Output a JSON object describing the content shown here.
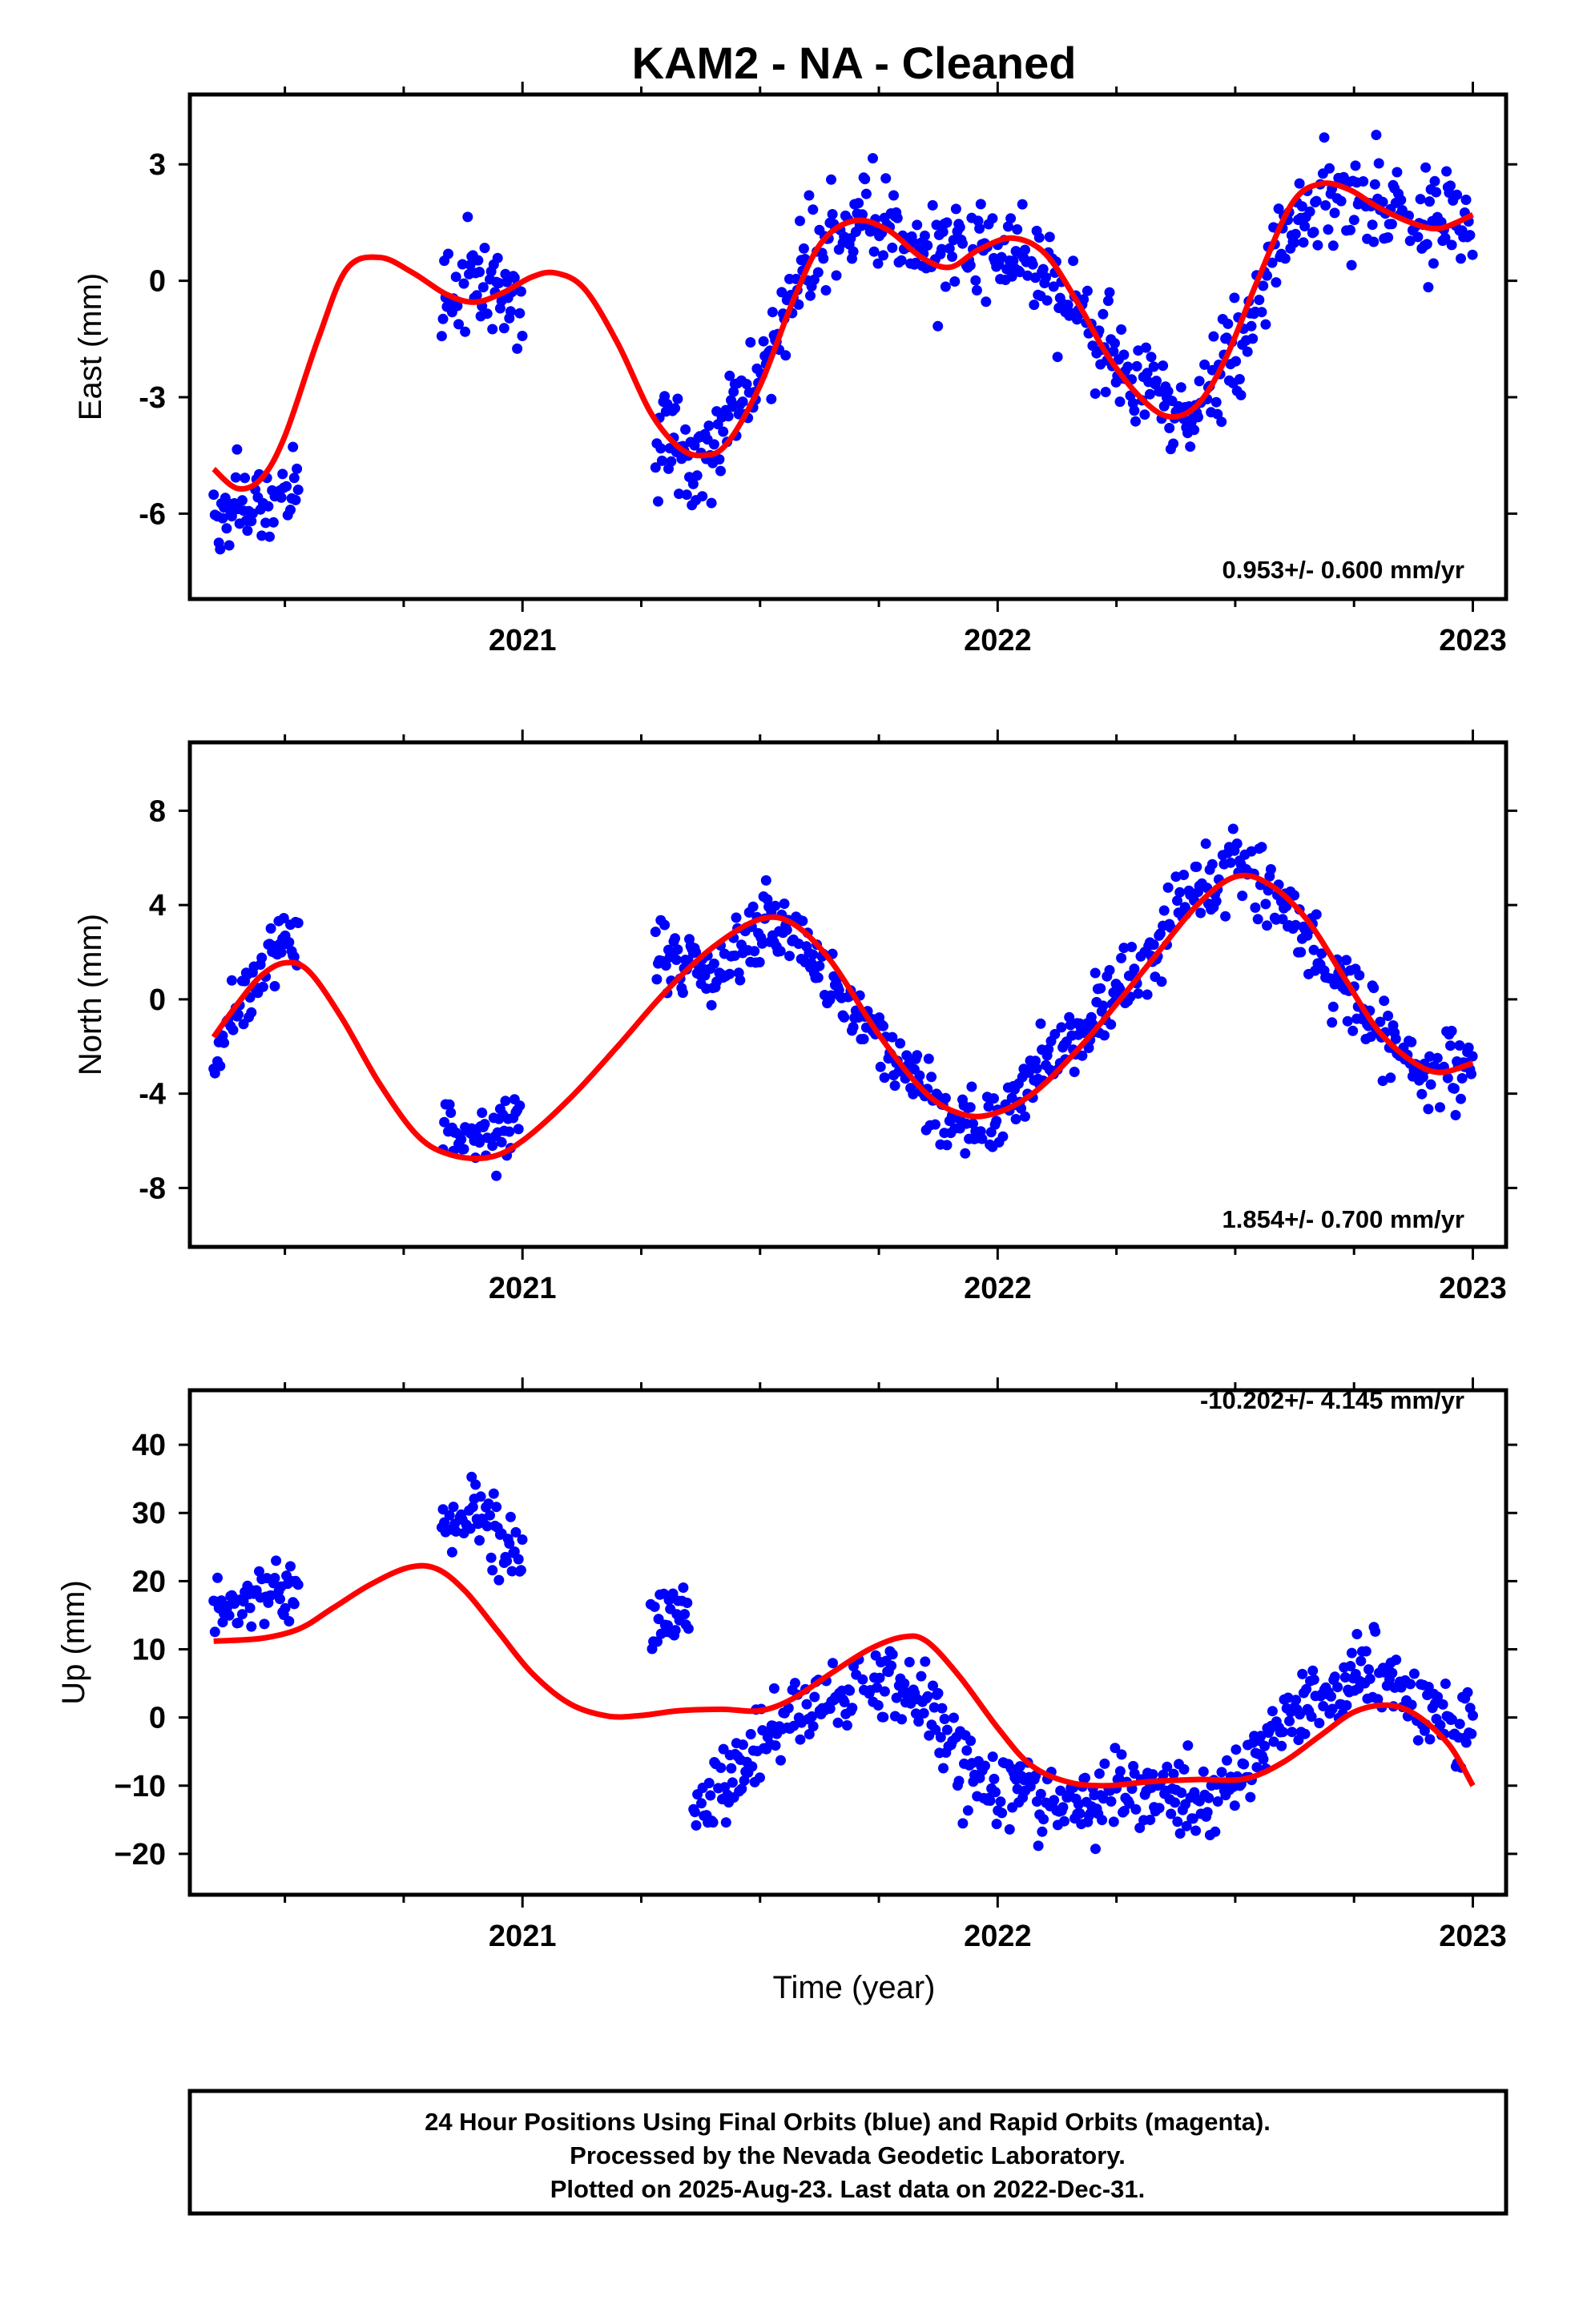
{
  "title": "KAM2  - NA - Cleaned",
  "footer_lines": [
    "24 Hour Positions Using Final Orbits (blue) and Rapid Orbits (magenta).",
    "Processed by the Nevada Geodetic Laboratory.",
    "Plotted on 2025-Aug-23. Last data on 2022-Dec-31."
  ],
  "colors": {
    "points": "#0000ff",
    "fit": "#ff0000",
    "frame": "#000000"
  },
  "chart_data": [
    {
      "type": "scatter",
      "ylabel": "East (mm)",
      "xlabel": "",
      "xlim": [
        2020.3,
        2023.07
      ],
      "ylim": [
        -8.2,
        4.8
      ],
      "x_ticks": [
        2021,
        2022,
        2023
      ],
      "x_tick_labels": [
        "2021",
        "2022",
        "2023"
      ],
      "y_ticks": [
        -6,
        -3,
        0,
        3
      ],
      "y_tick_labels": [
        "-6",
        "-3",
        "0",
        "3"
      ],
      "rate_text": "0.953+/- 0.600 mm/yr",
      "rate_position": "bottom-right",
      "series": [
        {
          "role": "daily_positions",
          "color": "#0000ff",
          "style": "points",
          "segments": [
            {
              "x_start": 2020.35,
              "x_end": 2020.53,
              "trend": [
                [
                  2020.35,
                  -6.0
                ],
                [
                  2020.42,
                  -5.9
                ],
                [
                  2020.5,
                  -5.4
                ],
                [
                  2020.53,
                  -5.2
                ]
              ],
              "scatter": 0.9
            },
            {
              "x_start": 2020.83,
              "x_end": 2021.0,
              "trend": [
                [
                  2020.83,
                  -0.7
                ],
                [
                  2020.9,
                  0.1
                ],
                [
                  2020.96,
                  -0.2
                ],
                [
                  2021.0,
                  -0.8
                ]
              ],
              "scatter": 1.1
            },
            {
              "x_start": 2021.28,
              "x_end": 2023.0,
              "trend": [
                [
                  2021.28,
                  -3.9
                ],
                [
                  2021.38,
                  -4.5
                ],
                [
                  2021.48,
                  -2.9
                ],
                [
                  2021.6,
                  0.8
                ],
                [
                  2021.72,
                  1.6
                ],
                [
                  2021.85,
                  0.8
                ],
                [
                  2022.0,
                  0.9
                ],
                [
                  2022.15,
                  -0.6
                ],
                [
                  2022.28,
                  -2.4
                ],
                [
                  2022.4,
                  -3.6
                ],
                [
                  2022.5,
                  -1.8
                ],
                [
                  2022.62,
                  1.8
                ],
                [
                  2022.75,
                  2.0
                ],
                [
                  2022.9,
                  1.5
                ],
                [
                  2023.0,
                  1.7
                ]
              ],
              "scatter": 1.0
            }
          ]
        },
        {
          "role": "model_fit",
          "color": "#ff0000",
          "style": "line",
          "points": [
            [
              2020.35,
              -4.85
            ],
            [
              2020.4,
              -5.35
            ],
            [
              2020.45,
              -5.1
            ],
            [
              2020.5,
              -4.0
            ],
            [
              2020.57,
              -1.5
            ],
            [
              2020.63,
              0.3
            ],
            [
              2020.7,
              0.6
            ],
            [
              2020.77,
              0.2
            ],
            [
              2020.84,
              -0.35
            ],
            [
              2020.9,
              -0.55
            ],
            [
              2020.96,
              -0.3
            ],
            [
              2021.02,
              0.1
            ],
            [
              2021.07,
              0.2
            ],
            [
              2021.13,
              -0.2
            ],
            [
              2021.2,
              -1.6
            ],
            [
              2021.27,
              -3.4
            ],
            [
              2021.33,
              -4.3
            ],
            [
              2021.38,
              -4.5
            ],
            [
              2021.43,
              -4.2
            ],
            [
              2021.5,
              -2.7
            ],
            [
              2021.57,
              -0.5
            ],
            [
              2021.63,
              1.0
            ],
            [
              2021.7,
              1.55
            ],
            [
              2021.77,
              1.3
            ],
            [
              2021.84,
              0.6
            ],
            [
              2021.9,
              0.35
            ],
            [
              2021.96,
              0.8
            ],
            [
              2022.03,
              1.1
            ],
            [
              2022.1,
              0.7
            ],
            [
              2022.17,
              -0.6
            ],
            [
              2022.23,
              -1.9
            ],
            [
              2022.3,
              -3.0
            ],
            [
              2022.36,
              -3.5
            ],
            [
              2022.42,
              -3.2
            ],
            [
              2022.48,
              -2.0
            ],
            [
              2022.55,
              0.1
            ],
            [
              2022.62,
              2.0
            ],
            [
              2022.68,
              2.5
            ],
            [
              2022.74,
              2.35
            ],
            [
              2022.8,
              1.9
            ],
            [
              2022.87,
              1.5
            ],
            [
              2022.93,
              1.35
            ],
            [
              2023.0,
              1.7
            ]
          ]
        }
      ]
    },
    {
      "type": "scatter",
      "ylabel": "North (mm)",
      "xlabel": "",
      "xlim": [
        2020.3,
        2023.07
      ],
      "ylim": [
        -10.5,
        10.9
      ],
      "x_ticks": [
        2021,
        2022,
        2023
      ],
      "x_tick_labels": [
        "2021",
        "2022",
        "2023"
      ],
      "y_ticks": [
        -8,
        -4,
        0,
        4,
        8
      ],
      "y_tick_labels": [
        "-8",
        "-4",
        "0",
        "4",
        "8"
      ],
      "rate_text": "1.854+/- 0.700 mm/yr",
      "rate_position": "bottom-right",
      "series": [
        {
          "role": "daily_positions",
          "color": "#0000ff",
          "style": "points",
          "segments": [
            {
              "x_start": 2020.35,
              "x_end": 2020.53,
              "trend": [
                [
                  2020.35,
                  -2.8
                ],
                [
                  2020.42,
                  0.5
                ],
                [
                  2020.48,
                  2.2
                ],
                [
                  2020.53,
                  2.4
                ]
              ],
              "scatter": 1.3
            },
            {
              "x_start": 2020.83,
              "x_end": 2021.0,
              "trend": [
                [
                  2020.83,
                  -5.8
                ],
                [
                  2020.9,
                  -6.2
                ],
                [
                  2020.96,
                  -5.4
                ],
                [
                  2021.0,
                  -5.0
                ]
              ],
              "scatter": 1.2
            },
            {
              "x_start": 2021.28,
              "x_end": 2023.0,
              "trend": [
                [
                  2021.28,
                  2.0
                ],
                [
                  2021.4,
                  1.3
                ],
                [
                  2021.52,
                  3.2
                ],
                [
                  2021.62,
                  1.4
                ],
                [
                  2021.75,
                  -1.8
                ],
                [
                  2021.88,
                  -5.0
                ],
                [
                  2022.0,
                  -5.0
                ],
                [
                  2022.15,
                  -1.8
                ],
                [
                  2022.28,
                  0.8
                ],
                [
                  2022.4,
                  4.5
                ],
                [
                  2022.5,
                  5.8
                ],
                [
                  2022.62,
                  3.5
                ],
                [
                  2022.75,
                  0.0
                ],
                [
                  2022.87,
                  -2.8
                ],
                [
                  2023.0,
                  -3.0
                ]
              ],
              "scatter": 1.3
            }
          ]
        },
        {
          "role": "model_fit",
          "color": "#ff0000",
          "style": "line",
          "points": [
            [
              2020.35,
              -1.6
            ],
            [
              2020.4,
              -0.2
            ],
            [
              2020.45,
              1.0
            ],
            [
              2020.5,
              1.55
            ],
            [
              2020.55,
              1.2
            ],
            [
              2020.62,
              -0.8
            ],
            [
              2020.7,
              -3.6
            ],
            [
              2020.78,
              -5.8
            ],
            [
              2020.85,
              -6.6
            ],
            [
              2020.93,
              -6.7
            ],
            [
              2021.0,
              -6.0
            ],
            [
              2021.1,
              -4.2
            ],
            [
              2021.2,
              -2.0
            ],
            [
              2021.3,
              0.3
            ],
            [
              2021.4,
              2.2
            ],
            [
              2021.5,
              3.4
            ],
            [
              2021.57,
              3.2
            ],
            [
              2021.65,
              1.6
            ],
            [
              2021.75,
              -1.5
            ],
            [
              2021.85,
              -4.0
            ],
            [
              2021.93,
              -4.9
            ],
            [
              2022.0,
              -4.8
            ],
            [
              2022.08,
              -3.9
            ],
            [
              2022.17,
              -2.1
            ],
            [
              2022.25,
              -0.2
            ],
            [
              2022.33,
              1.8
            ],
            [
              2022.42,
              4.0
            ],
            [
              2022.5,
              5.2
            ],
            [
              2022.57,
              4.9
            ],
            [
              2022.65,
              3.4
            ],
            [
              2022.73,
              0.9
            ],
            [
              2022.8,
              -1.3
            ],
            [
              2022.87,
              -2.6
            ],
            [
              2022.93,
              -3.1
            ],
            [
              2023.0,
              -2.7
            ]
          ]
        }
      ]
    },
    {
      "type": "scatter",
      "ylabel": "Up (mm)",
      "xlabel": "Time (year)",
      "xlim": [
        2020.3,
        2023.07
      ],
      "ylim": [
        -26,
        48
      ],
      "x_ticks": [
        2021,
        2022,
        2023
      ],
      "x_tick_labels": [
        "2021",
        "2022",
        "2023"
      ],
      "y_ticks": [
        -20,
        -10,
        0,
        10,
        20,
        30,
        40
      ],
      "y_tick_labels": [
        "−20",
        "−10",
        "0",
        "10",
        "20",
        "30",
        "40"
      ],
      "rate_text": "-10.202+/- 4.145 mm/yr",
      "rate_position": "top-right",
      "series": [
        {
          "role": "daily_positions",
          "color": "#0000ff",
          "style": "points",
          "segments": [
            {
              "x_start": 2020.35,
              "x_end": 2020.53,
              "trend": [
                [
                  2020.35,
                  16
                ],
                [
                  2020.45,
                  18
                ],
                [
                  2020.53,
                  19
                ]
              ],
              "scatter": 3.5
            },
            {
              "x_start": 2020.83,
              "x_end": 2021.0,
              "trend": [
                [
                  2020.83,
                  28
                ],
                [
                  2020.9,
                  31
                ],
                [
                  2021.0,
                  24
                ]
              ],
              "scatter": 4.5
            },
            {
              "x_start": 2021.27,
              "x_end": 2021.35,
              "trend": [
                [
                  2021.27,
                  14
                ],
                [
                  2021.35,
                  16
                ]
              ],
              "scatter": 4.0
            },
            {
              "x_start": 2021.36,
              "x_end": 2023.0,
              "trend": [
                [
                  2021.36,
                  -14
                ],
                [
                  2021.45,
                  -8
                ],
                [
                  2021.55,
                  0
                ],
                [
                  2021.7,
                  4
                ],
                [
                  2021.82,
                  4
                ],
                [
                  2021.9,
                  -5
                ],
                [
                  2022.0,
                  -10
                ],
                [
                  2022.15,
                  -13
                ],
                [
                  2022.3,
                  -11
                ],
                [
                  2022.45,
                  -12
                ],
                [
                  2022.55,
                  -5
                ],
                [
                  2022.65,
                  2
                ],
                [
                  2022.8,
                  8
                ],
                [
                  2022.88,
                  2
                ],
                [
                  2023.0,
                  -2
                ]
              ],
              "scatter": 4.5
            }
          ]
        },
        {
          "role": "model_fit",
          "color": "#ff0000",
          "style": "line",
          "points": [
            [
              2020.35,
              11.2
            ],
            [
              2020.45,
              11.6
            ],
            [
              2020.53,
              13.0
            ],
            [
              2020.6,
              16.0
            ],
            [
              2020.68,
              19.5
            ],
            [
              2020.76,
              22.0
            ],
            [
              2020.82,
              21.8
            ],
            [
              2020.88,
              18.5
            ],
            [
              2020.95,
              12.5
            ],
            [
              2021.02,
              6.5
            ],
            [
              2021.1,
              2.0
            ],
            [
              2021.18,
              0.2
            ],
            [
              2021.25,
              0.3
            ],
            [
              2021.33,
              1.0
            ],
            [
              2021.42,
              1.2
            ],
            [
              2021.5,
              1.0
            ],
            [
              2021.57,
              2.8
            ],
            [
              2021.65,
              6.5
            ],
            [
              2021.73,
              10.0
            ],
            [
              2021.8,
              11.8
            ],
            [
              2021.85,
              11.2
            ],
            [
              2021.92,
              6.0
            ],
            [
              2022.0,
              -1.5
            ],
            [
              2022.07,
              -7.0
            ],
            [
              2022.15,
              -9.5
            ],
            [
              2022.23,
              -10.0
            ],
            [
              2022.32,
              -9.4
            ],
            [
              2022.42,
              -9.1
            ],
            [
              2022.52,
              -9.0
            ],
            [
              2022.6,
              -6.6
            ],
            [
              2022.68,
              -2.6
            ],
            [
              2022.75,
              0.8
            ],
            [
              2022.82,
              1.8
            ],
            [
              2022.88,
              0.4
            ],
            [
              2022.95,
              -4.0
            ],
            [
              2023.0,
              -10.0
            ]
          ]
        }
      ]
    }
  ]
}
